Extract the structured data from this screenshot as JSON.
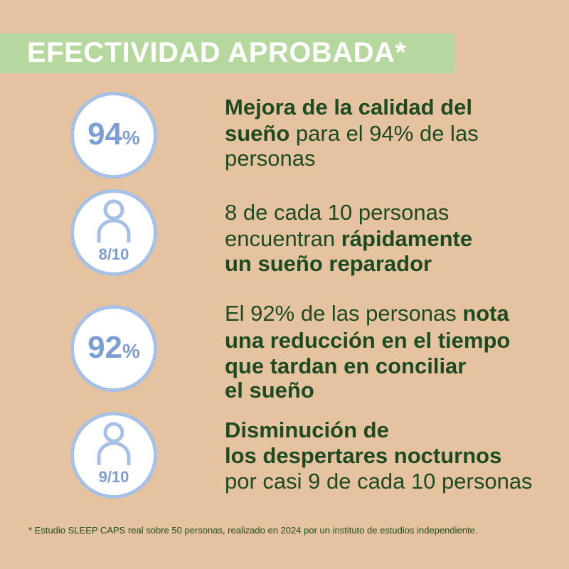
{
  "header": {
    "title": "EFECTIVIDAD APROBADA*"
  },
  "items": [
    {
      "badge": {
        "number": "94",
        "unit": "%"
      },
      "lines": [
        [
          {
            "text": "Mejora de la calidad del",
            "bold": true
          }
        ],
        [
          {
            "text": "sueño",
            "bold": true
          },
          {
            "text": " para el 94% de las",
            "bold": false
          }
        ],
        [
          {
            "text": "personas",
            "bold": false
          }
        ]
      ]
    },
    {
      "badge": {
        "icon": "person",
        "label": "8/10"
      },
      "lines": [
        [
          {
            "text": "8 de cada 10 personas",
            "bold": false
          }
        ],
        [
          {
            "text": "encuentran ",
            "bold": false
          },
          {
            "text": "rápidamente",
            "bold": true
          }
        ],
        [
          {
            "text": "un sueño reparador",
            "bold": true
          }
        ]
      ]
    },
    {
      "badge": {
        "number": "92",
        "unit": "%"
      },
      "lines": [
        [
          {
            "text": "El 92% de las personas ",
            "bold": false
          },
          {
            "text": "nota",
            "bold": true
          }
        ],
        [
          {
            "text": "una reducción en el tiempo",
            "bold": true
          }
        ],
        [
          {
            "text": "que tardan en conciliar",
            "bold": true
          }
        ],
        [
          {
            "text": "el sueño",
            "bold": true
          }
        ]
      ]
    },
    {
      "badge": {
        "icon": "person",
        "label": "9/10"
      },
      "lines": [
        [
          {
            "text": "Disminución de",
            "bold": true
          }
        ],
        [
          {
            "text": "los despertares nocturnos",
            "bold": true
          }
        ],
        [
          {
            "text": "por casi 9 de cada 10 personas",
            "bold": false
          }
        ]
      ]
    }
  ],
  "footnote": "* Estudio SLEEP CAPS real sobre 50 personas, realizado en 2024 por un instituto de estudios independiente."
}
